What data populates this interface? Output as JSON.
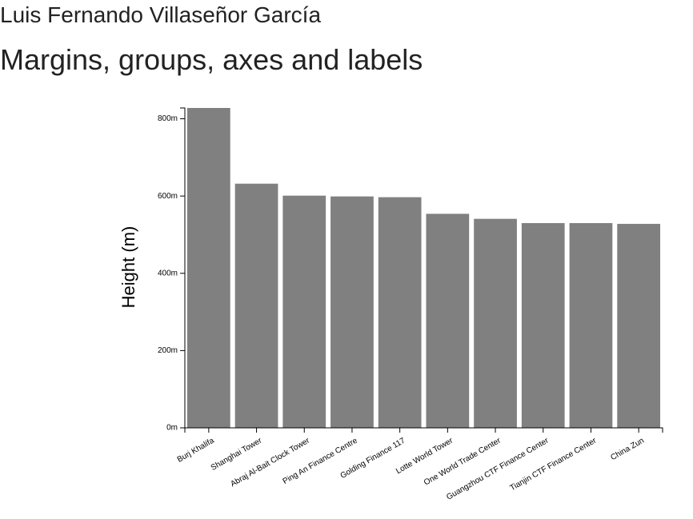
{
  "header": {
    "author": "Luis Fernando Villaseñor García",
    "title": "Margins, groups, axes and labels"
  },
  "chart_data": {
    "type": "bar",
    "title": "",
    "xlabel": "",
    "ylabel": "Height (m)",
    "categories": [
      "Burj Khalifa",
      "Shanghai Tower",
      "Abraj Al-Bait Clock Tower",
      "Ping An Finance Centre",
      "Golding Finance 117",
      "Lotte World Tower",
      "One World Trade Center",
      "Guangzhou CTF Finance Center",
      "Tianjin CTF Finance Center",
      "China Zun"
    ],
    "values": [
      828,
      632,
      601,
      599,
      597,
      554,
      541,
      530,
      530,
      528
    ],
    "ylim": [
      0,
      828
    ],
    "yticks": [
      0,
      200,
      400,
      600,
      800
    ],
    "ytick_suffix": "m",
    "bar_color": "#808080",
    "grid": false,
    "legend": "none"
  }
}
